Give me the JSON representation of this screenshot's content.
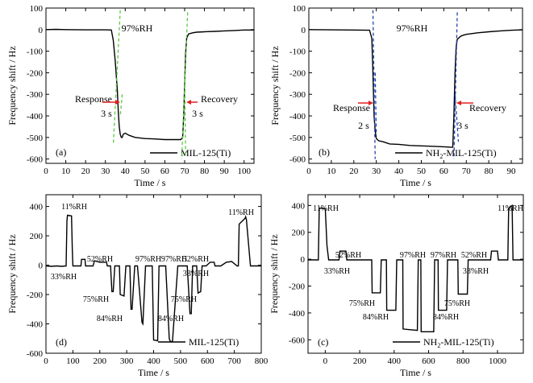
{
  "figure": {
    "ylabel": "Frequency shift / Hz",
    "xlabel": "Time / s"
  },
  "chart_data": [
    {
      "type": "line",
      "panel": "(a)",
      "legend": "MIL-125(Ti)",
      "xlabel": "Time / s",
      "ylabel": "Frequency shift / Hz",
      "xlim": [
        0,
        105
      ],
      "ylim": [
        -620,
        100
      ],
      "xticks": [
        0,
        10,
        20,
        30,
        40,
        50,
        60,
        70,
        80,
        90,
        100
      ],
      "yticks": [
        100,
        0,
        -100,
        -200,
        -300,
        -400,
        -500,
        -600
      ],
      "annotations": {
        "humidity": "97%RH",
        "response": "Response",
        "recovery": "Recovery",
        "response_time": "3 s",
        "recovery_time": "3 s"
      },
      "series": [
        {
          "x": [
            0,
            5,
            10,
            20,
            30,
            33,
            34,
            35,
            36,
            36.5,
            37,
            37.5,
            38,
            38.5,
            39,
            40,
            42,
            45,
            50,
            55,
            60,
            65,
            68,
            69,
            69.5,
            70,
            70.5,
            71,
            72,
            74,
            76,
            80,
            85,
            90,
            95,
            100,
            105
          ],
          "y": [
            0,
            1,
            0,
            -1,
            -1,
            -2,
            -50,
            -150,
            -280,
            -380,
            -450,
            -485,
            -500,
            -500,
            -485,
            -480,
            -490,
            -500,
            -505,
            -507,
            -510,
            -510,
            -510,
            -500,
            -400,
            -250,
            -110,
            -40,
            -20,
            -15,
            -12,
            -10,
            -8,
            -6,
            -4,
            -2,
            -2
          ]
        }
      ]
    },
    {
      "type": "line",
      "panel": "(b)",
      "legend": "NH2-MIL-125(Ti)",
      "xlabel": "Time / s",
      "ylabel": "Frequency shift / Hz",
      "xlim": [
        0,
        95
      ],
      "ylim": [
        -620,
        100
      ],
      "xticks": [
        0,
        10,
        20,
        30,
        40,
        50,
        60,
        70,
        80,
        90
      ],
      "yticks": [
        100,
        0,
        -100,
        -200,
        -300,
        -400,
        -500,
        -600
      ],
      "annotations": {
        "humidity": "97%RH",
        "response": "Response",
        "recovery": "Recovery",
        "response_time": "2 s",
        "recovery_time": "3 s"
      },
      "series": [
        {
          "x": [
            0,
            10,
            20,
            27,
            28,
            28.5,
            29,
            29.5,
            30,
            31,
            33,
            36,
            40,
            45,
            50,
            55,
            60,
            63,
            64,
            64.5,
            65,
            65.5,
            66,
            67,
            68,
            70,
            75,
            80,
            85,
            90,
            95
          ],
          "y": [
            0,
            -1,
            -2,
            -3,
            -40,
            -200,
            -400,
            -470,
            -505,
            -515,
            -520,
            -530,
            -532,
            -537,
            -539,
            -541,
            -543,
            -545,
            -545,
            -400,
            -200,
            -80,
            -45,
            -35,
            -28,
            -22,
            -15,
            -10,
            -6,
            -3,
            -1
          ]
        }
      ]
    },
    {
      "type": "line",
      "panel": "(d)",
      "legend": "MIL-125(Ti)",
      "xlabel": "Time / s",
      "ylabel": "Frequency shift / Hz",
      "xlim": [
        0,
        800
      ],
      "ylim": [
        -600,
        480
      ],
      "xticks": [
        0,
        100,
        200,
        300,
        400,
        500,
        600,
        700,
        800
      ],
      "yticks": [
        400,
        200,
        0,
        -200,
        -400,
        -600
      ],
      "annotations": [
        "11%RH",
        "33%RH",
        "52%RH",
        "75%RH",
        "84%RH",
        "97%RH",
        "97%RH",
        "84%RH",
        "75%RH",
        "52%RH",
        "33%RH",
        "11%RH"
      ],
      "series": [
        {
          "x": [
            0,
            20,
            40,
            60,
            75,
            78,
            80,
            95,
            98,
            100,
            120,
            130,
            132,
            145,
            147,
            150,
            175,
            180,
            200,
            225,
            228,
            240,
            245,
            250,
            256,
            258,
            262,
            268,
            273,
            276,
            290,
            297,
            300,
            312,
            316,
            320,
            330,
            337,
            340,
            357,
            360,
            370,
            385,
            390,
            395,
            400,
            415,
            420,
            440,
            445,
            458,
            462,
            470,
            490,
            495,
            500,
            520,
            525,
            535,
            540,
            545,
            560,
            565,
            575,
            580,
            590,
            595,
            610,
            625,
            628,
            650,
            670,
            690,
            710,
            715,
            718,
            740,
            742,
            745,
            760,
            780,
            800
          ],
          "y": [
            -5,
            -8,
            -5,
            -8,
            -5,
            300,
            340,
            335,
            100,
            -5,
            -5,
            -5,
            40,
            40,
            -5,
            -5,
            -5,
            30,
            20,
            20,
            -5,
            -5,
            -180,
            -180,
            -5,
            -5,
            -5,
            -5,
            -5,
            -200,
            -210,
            -5,
            -5,
            -5,
            -300,
            -300,
            -5,
            -5,
            -5,
            -390,
            -400,
            -5,
            -5,
            -5,
            -5,
            -510,
            -515,
            -5,
            -5,
            -5,
            -500,
            -520,
            -520,
            -5,
            -5,
            -5,
            -5,
            -5,
            -330,
            -330,
            -5,
            -5,
            -190,
            -180,
            -5,
            -5,
            -5,
            20,
            20,
            -5,
            -5,
            20,
            25,
            -5,
            -5,
            280,
            320,
            330,
            310,
            -5,
            -5,
            -5
          ]
        }
      ]
    },
    {
      "type": "line",
      "panel": "(c)",
      "legend": "NH2-MIL-125(Ti)",
      "xlabel": "Time / s",
      "ylabel": "Frequency shift / Hz",
      "xlim": [
        -100,
        1150
      ],
      "ylim": [
        -700,
        480
      ],
      "xticks": [
        0,
        200,
        400,
        600,
        800,
        1000
      ],
      "yticks": [
        400,
        200,
        0,
        -200,
        -400,
        -600
      ],
      "annotations": [
        "11%RH",
        "33%RH",
        "52%RH",
        "75%RH",
        "84%RH",
        "97%RH",
        "97%RH",
        "84%RH",
        "75%RH",
        "52%RH",
        "33%RH",
        "11%RH"
      ],
      "series": [
        {
          "x": [
            -100,
            -40,
            -35,
            -30,
            0,
            10,
            20,
            80,
            85,
            120,
            125,
            150,
            270,
            272,
            320,
            325,
            355,
            357,
            410,
            415,
            450,
            452,
            535,
            540,
            555,
            557,
            630,
            635,
            655,
            657,
            705,
            710,
            770,
            772,
            825,
            830,
            960,
            965,
            1000,
            1005,
            1060,
            1065,
            1085,
            1090,
            1150
          ],
          "y": [
            -5,
            -5,
            380,
            380,
            375,
            100,
            -5,
            -5,
            60,
            60,
            -5,
            -5,
            -5,
            -250,
            -250,
            -5,
            -5,
            -380,
            -380,
            -5,
            -5,
            -520,
            -530,
            -5,
            -5,
            -540,
            -540,
            -5,
            -5,
            -380,
            -380,
            -5,
            -5,
            -260,
            -260,
            -5,
            -5,
            60,
            60,
            -5,
            -5,
            380,
            400,
            -5,
            -5
          ]
        }
      ]
    }
  ]
}
